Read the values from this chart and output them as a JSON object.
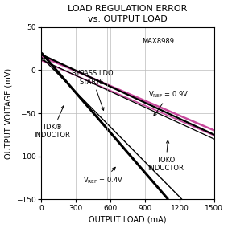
{
  "title_line1": "LOAD REGULATION ERROR",
  "title_line2": "vs. OUTPUT LOAD",
  "xlabel": "OUTPUT LOAD (mA)",
  "ylabel": "OUTPUT VOLTAGE (mV)",
  "xlim": [
    0,
    1500
  ],
  "ylim": [
    -150,
    50
  ],
  "xticks": [
    0,
    300,
    600,
    900,
    1200,
    1500
  ],
  "yticks": [
    -150,
    -100,
    -50,
    0,
    50
  ],
  "lines": [
    {
      "label": "pink_tdk_09v",
      "x": [
        0,
        1500
      ],
      "y": [
        16,
        -70
      ],
      "color": "#c8489c",
      "lw": 1.8
    },
    {
      "label": "pink_toko_09v",
      "x": [
        0,
        1500
      ],
      "y": [
        11,
        -76
      ],
      "color": "#c8489c",
      "lw": 1.2
    },
    {
      "label": "black_tdk_09v",
      "x": [
        0,
        1500
      ],
      "y": [
        18,
        -75
      ],
      "color": "#000000",
      "lw": 1.6
    },
    {
      "label": "black_toko_09v",
      "x": [
        0,
        1500
      ],
      "y": [
        12,
        -80
      ],
      "color": "#000000",
      "lw": 0.9
    },
    {
      "label": "black_tdk_04v",
      "x": [
        0,
        1100
      ],
      "y": [
        20,
        -150
      ],
      "color": "#000000",
      "lw": 2.2
    },
    {
      "label": "black_toko_04v",
      "x": [
        0,
        1220
      ],
      "y": [
        15,
        -150
      ],
      "color": "#000000",
      "lw": 1.0
    }
  ],
  "bypass_x": 570,
  "grid_color": "#bbbbbb",
  "bg_color": "#ffffff",
  "title_fontsize": 8.0,
  "label_fontsize": 7.0,
  "tick_fontsize": 6.5,
  "annot_fontsize": 6.0
}
